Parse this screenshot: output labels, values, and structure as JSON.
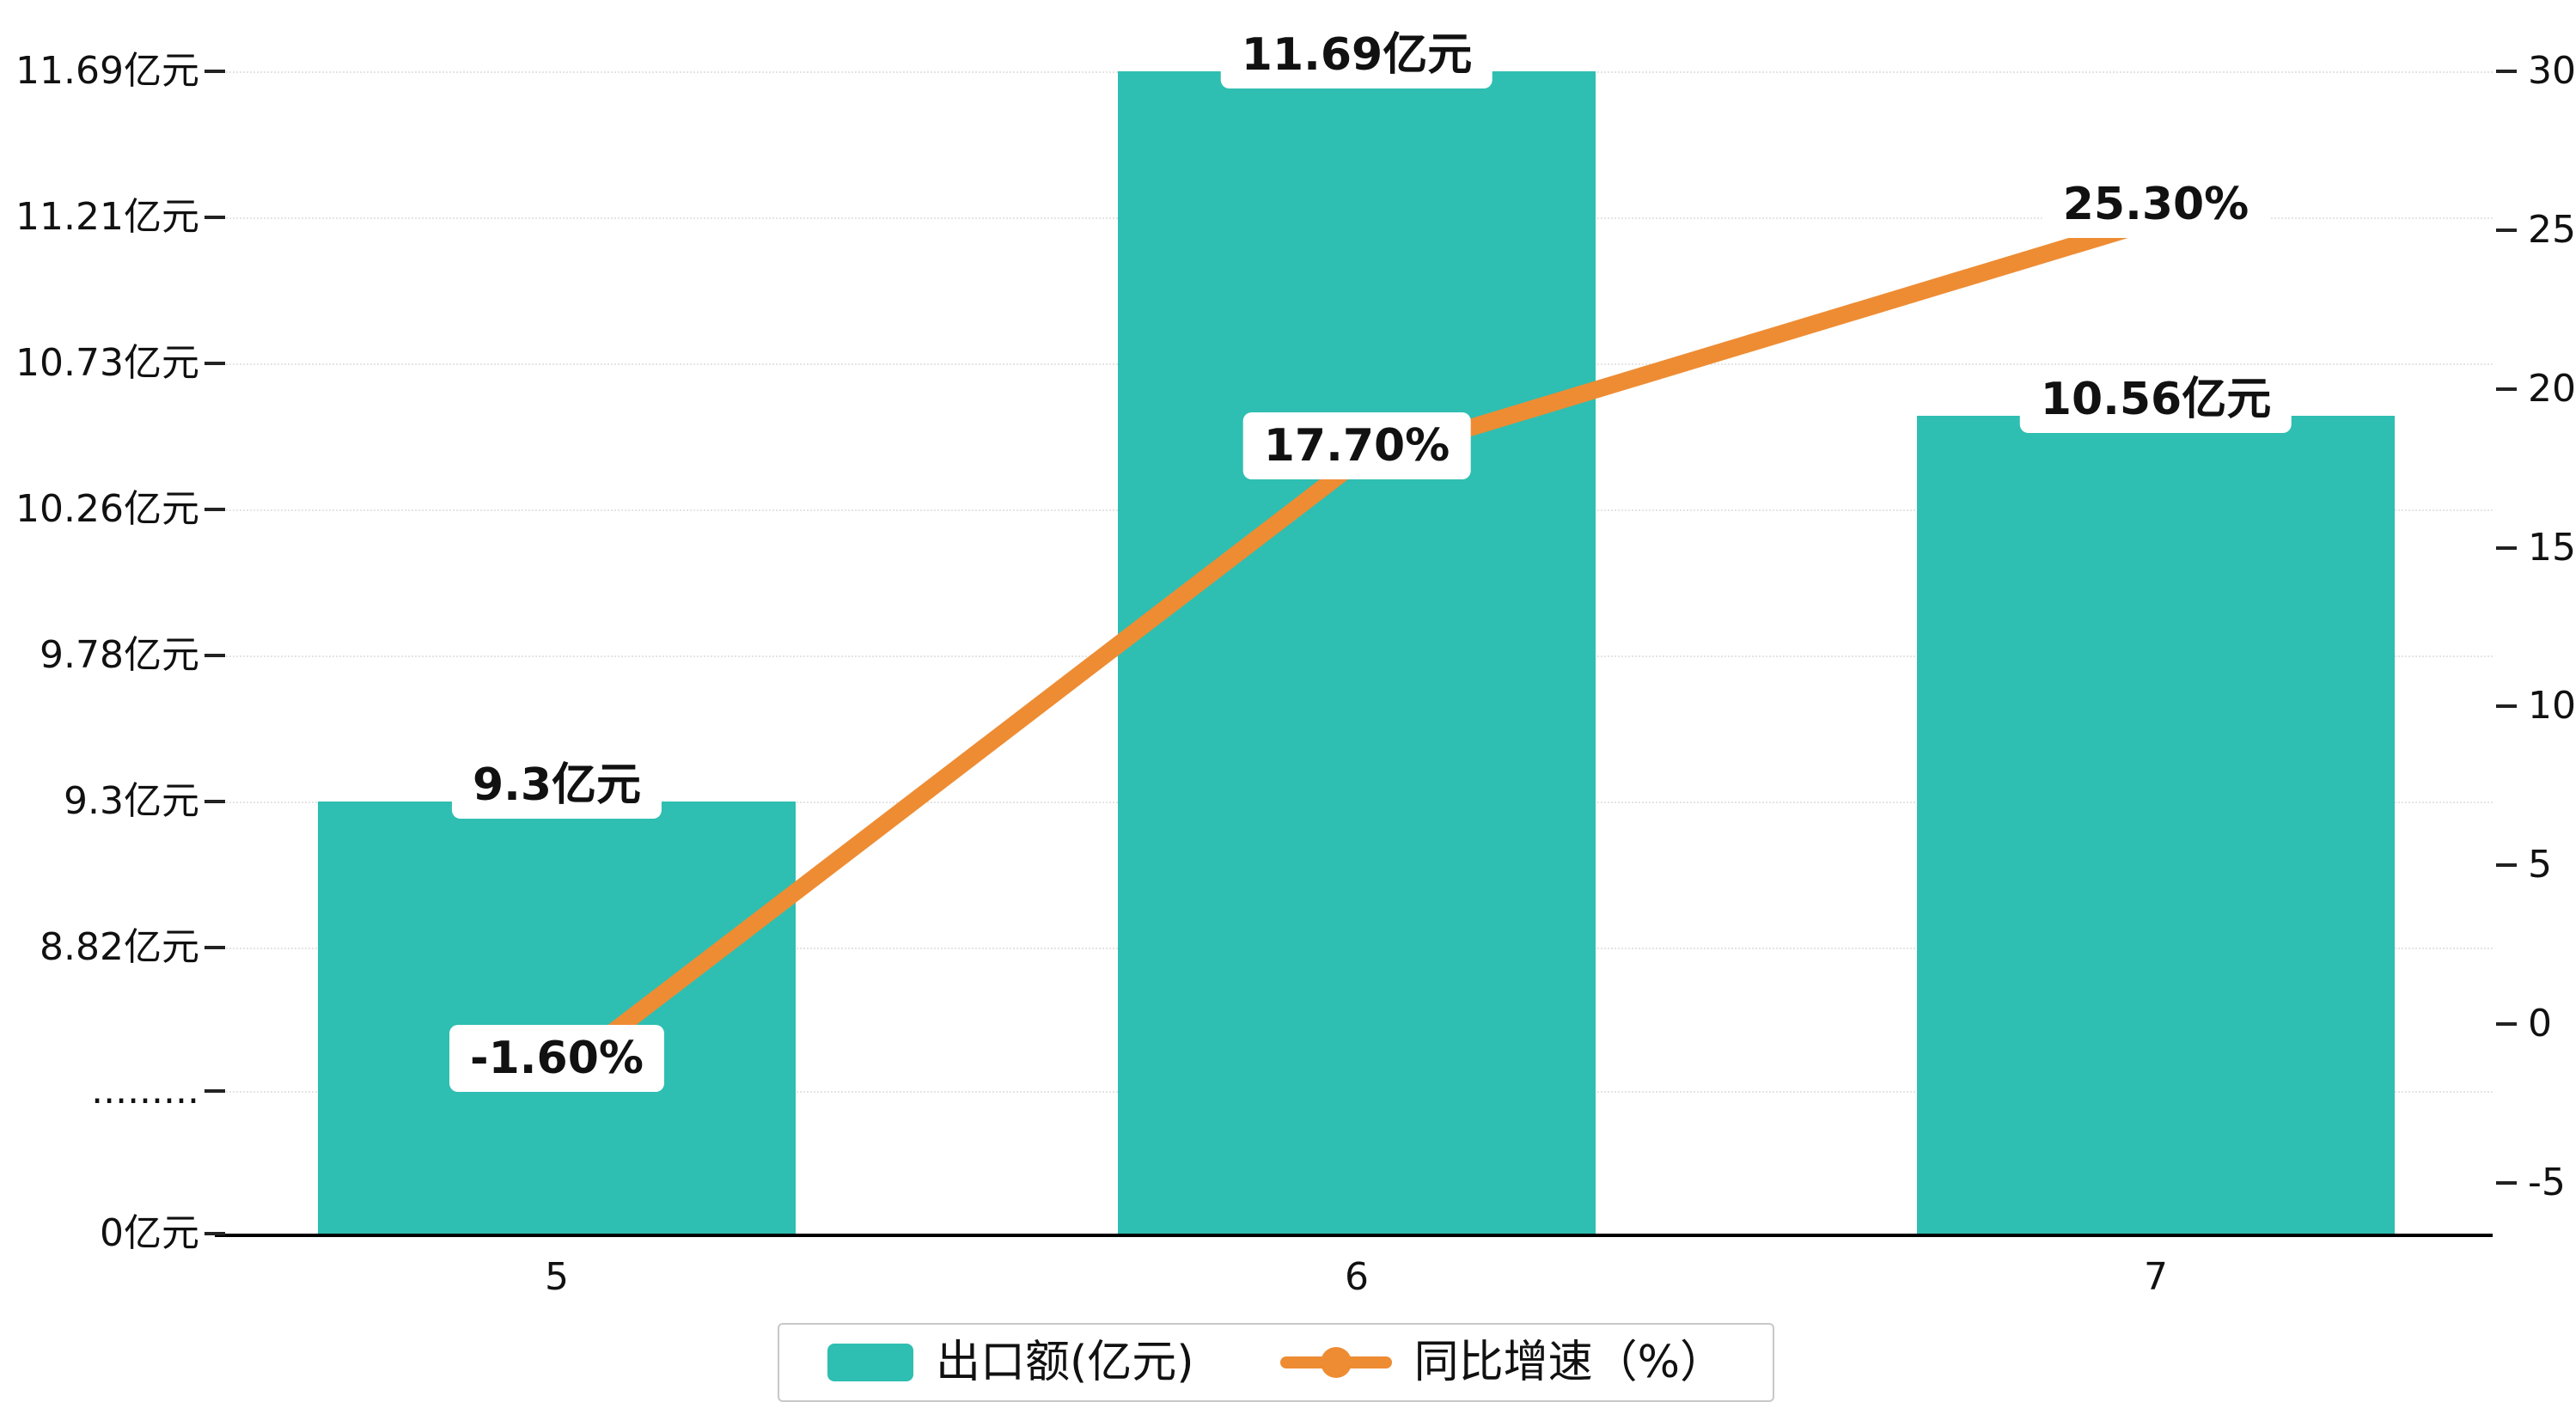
{
  "chart_data": {
    "type": "bar-line-combo",
    "categories": [
      "5",
      "6",
      "7"
    ],
    "series": [
      {
        "name": "出口额(亿元)",
        "type": "bar",
        "axis": "left",
        "color": "#2fbeb2",
        "values": [
          9.3,
          11.69,
          10.56
        ],
        "value_labels": [
          "9.3亿元",
          "11.69亿元",
          "10.56亿元"
        ]
      },
      {
        "name": "同比增速（%）",
        "type": "line",
        "axis": "right",
        "color": "#ee8c33",
        "values": [
          -1.6,
          17.7,
          25.3
        ],
        "value_labels": [
          "-1.60%",
          "17.70%",
          "25.30%"
        ]
      }
    ],
    "left_axis": {
      "tick_labels": [
        "11.69亿元",
        "11.21亿元",
        "10.73亿元",
        "10.26亿元",
        "9.78亿元",
        "9.3亿元",
        "8.82亿元",
        ".........",
        "0亿元"
      ],
      "tick_values": [
        11.69,
        11.21,
        10.73,
        10.26,
        9.78,
        9.3,
        8.82,
        null,
        0
      ],
      "broken_axis": true
    },
    "right_axis": {
      "tick_labels": [
        "30",
        "25",
        "20",
        "15",
        "10",
        "5",
        "0",
        "-5"
      ],
      "tick_values": [
        30,
        25,
        20,
        15,
        10,
        5,
        0,
        -5
      ],
      "min": -5,
      "max": 30
    },
    "x_axis": {
      "tick_labels": [
        "5",
        "6",
        "7"
      ]
    },
    "grid": "dotted-horizontal",
    "legend_position": "bottom-center",
    "background": "#ffffff"
  }
}
